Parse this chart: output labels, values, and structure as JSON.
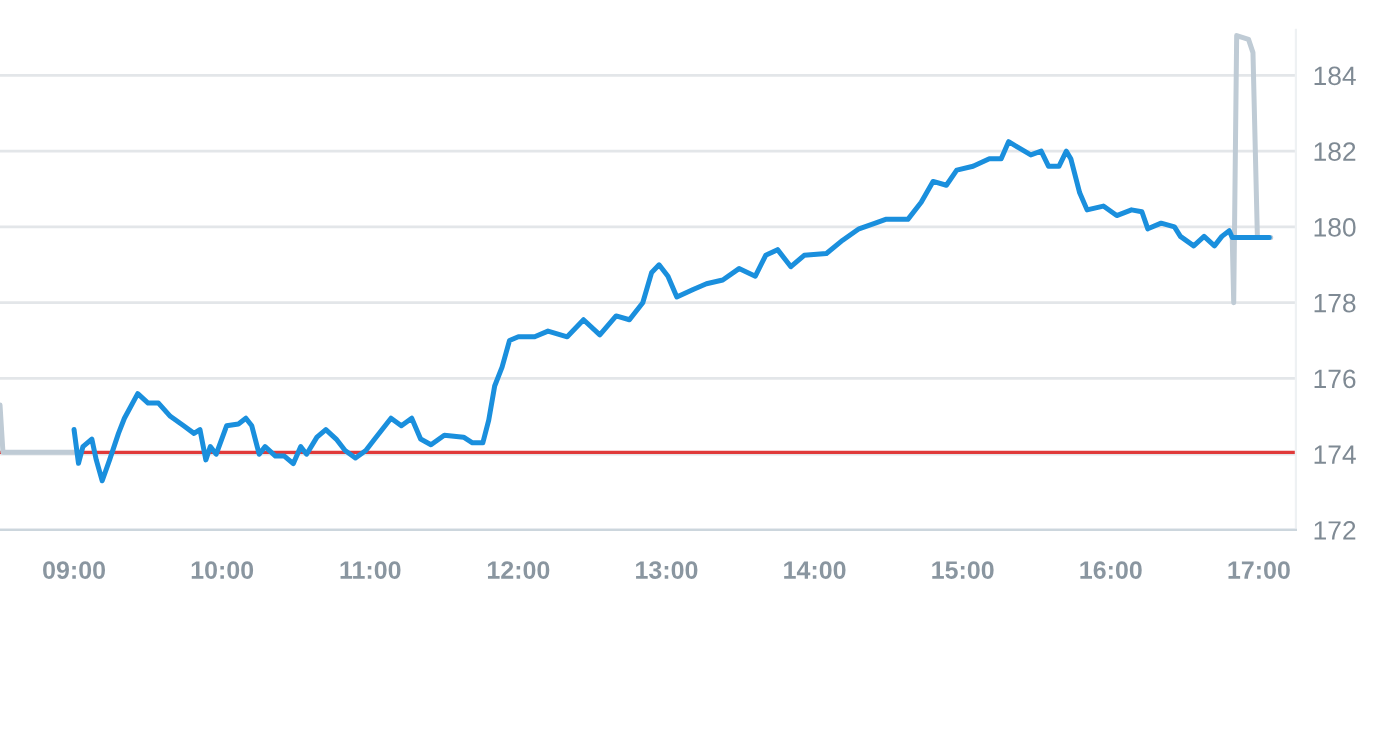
{
  "chart_data": {
    "type": "line",
    "xlim": [
      8.5,
      17.25
    ],
    "ylim": [
      172,
      185.2
    ],
    "xticks": [
      {
        "value": 9,
        "label": "09:00"
      },
      {
        "value": 10,
        "label": "10:00"
      },
      {
        "value": 11,
        "label": "11:00"
      },
      {
        "value": 12,
        "label": "12:00"
      },
      {
        "value": 13,
        "label": "13:00"
      },
      {
        "value": 14,
        "label": "14:00"
      },
      {
        "value": 15,
        "label": "15:00"
      },
      {
        "value": 16,
        "label": "16:00"
      },
      {
        "value": 17,
        "label": "17:00"
      }
    ],
    "yticks": [
      172,
      174,
      176,
      178,
      180,
      182,
      184
    ],
    "grid": "y",
    "marker": "none",
    "line_style": "solid",
    "ref_lines": [
      {
        "axis": "y",
        "value": 174.05,
        "color": "#e03a3a"
      }
    ],
    "series": [
      {
        "color": "#bfcbd5",
        "x": [
          8.5,
          8.52,
          9.0
        ],
        "values": [
          175.3,
          174.05,
          174.05
        ]
      },
      {
        "color": "#bfcbd5",
        "x": [
          16.82,
          16.83,
          16.85,
          16.93,
          16.96,
          16.99,
          17.08
        ],
        "values": [
          179.72,
          178.0,
          185.05,
          184.95,
          184.6,
          179.72,
          179.72
        ]
      },
      {
        "color": "#1a8fdd",
        "x": [
          9.0,
          9.03,
          9.06,
          9.12,
          9.15,
          9.19,
          9.24,
          9.3,
          9.34,
          9.43,
          9.5,
          9.57,
          9.65,
          9.74,
          9.81,
          9.85,
          9.89,
          9.92,
          9.96,
          10.03,
          10.11,
          10.16,
          10.2,
          10.25,
          10.29,
          10.36,
          10.42,
          10.48,
          10.53,
          10.57,
          10.64,
          10.7,
          10.77,
          10.83,
          10.9,
          10.97,
          11.03,
          11.14,
          11.21,
          11.28,
          11.34,
          11.41,
          11.5,
          11.63,
          11.69,
          11.76,
          11.8,
          11.84,
          11.89,
          11.94,
          12.0,
          12.11,
          12.2,
          12.33,
          12.44,
          12.55,
          12.66,
          12.75,
          12.84,
          12.9,
          12.95,
          13.01,
          13.07,
          13.18,
          13.27,
          13.38,
          13.49,
          13.6,
          13.67,
          13.75,
          13.84,
          13.93,
          14.08,
          14.19,
          14.3,
          14.41,
          14.48,
          14.63,
          14.72,
          14.8,
          14.89,
          14.96,
          15.07,
          15.18,
          15.26,
          15.31,
          15.46,
          15.53,
          15.58,
          15.65,
          15.7,
          15.73,
          15.79,
          15.84,
          15.95,
          16.04,
          16.14,
          16.21,
          16.25,
          16.34,
          16.43,
          16.47,
          16.56,
          16.63,
          16.7,
          16.75,
          16.8,
          16.82,
          17.07
        ],
        "values": [
          174.65,
          173.76,
          174.2,
          174.4,
          173.85,
          173.3,
          173.85,
          174.55,
          174.95,
          175.6,
          175.35,
          175.35,
          175.0,
          174.75,
          174.55,
          174.65,
          173.85,
          174.2,
          174.0,
          174.75,
          174.8,
          174.95,
          174.75,
          174.0,
          174.2,
          173.95,
          173.95,
          173.75,
          174.2,
          174.0,
          174.45,
          174.65,
          174.4,
          174.1,
          173.9,
          174.1,
          174.4,
          174.95,
          174.75,
          174.95,
          174.4,
          174.25,
          174.5,
          174.45,
          174.3,
          174.3,
          174.9,
          175.8,
          176.3,
          177.0,
          177.1,
          177.1,
          177.25,
          177.1,
          177.55,
          177.15,
          177.65,
          177.55,
          178.0,
          178.8,
          179.0,
          178.7,
          178.15,
          178.35,
          178.5,
          178.6,
          178.9,
          178.7,
          179.25,
          179.4,
          178.95,
          179.25,
          179.3,
          179.65,
          179.95,
          180.1,
          180.2,
          180.2,
          180.65,
          181.2,
          181.1,
          181.5,
          181.6,
          181.8,
          181.8,
          182.25,
          181.9,
          182.0,
          181.6,
          181.6,
          182.0,
          181.8,
          180.9,
          180.45,
          180.55,
          180.3,
          180.45,
          180.4,
          179.95,
          180.1,
          180.0,
          179.75,
          179.5,
          179.75,
          179.5,
          179.75,
          179.9,
          179.72,
          179.72
        ]
      }
    ]
  }
}
